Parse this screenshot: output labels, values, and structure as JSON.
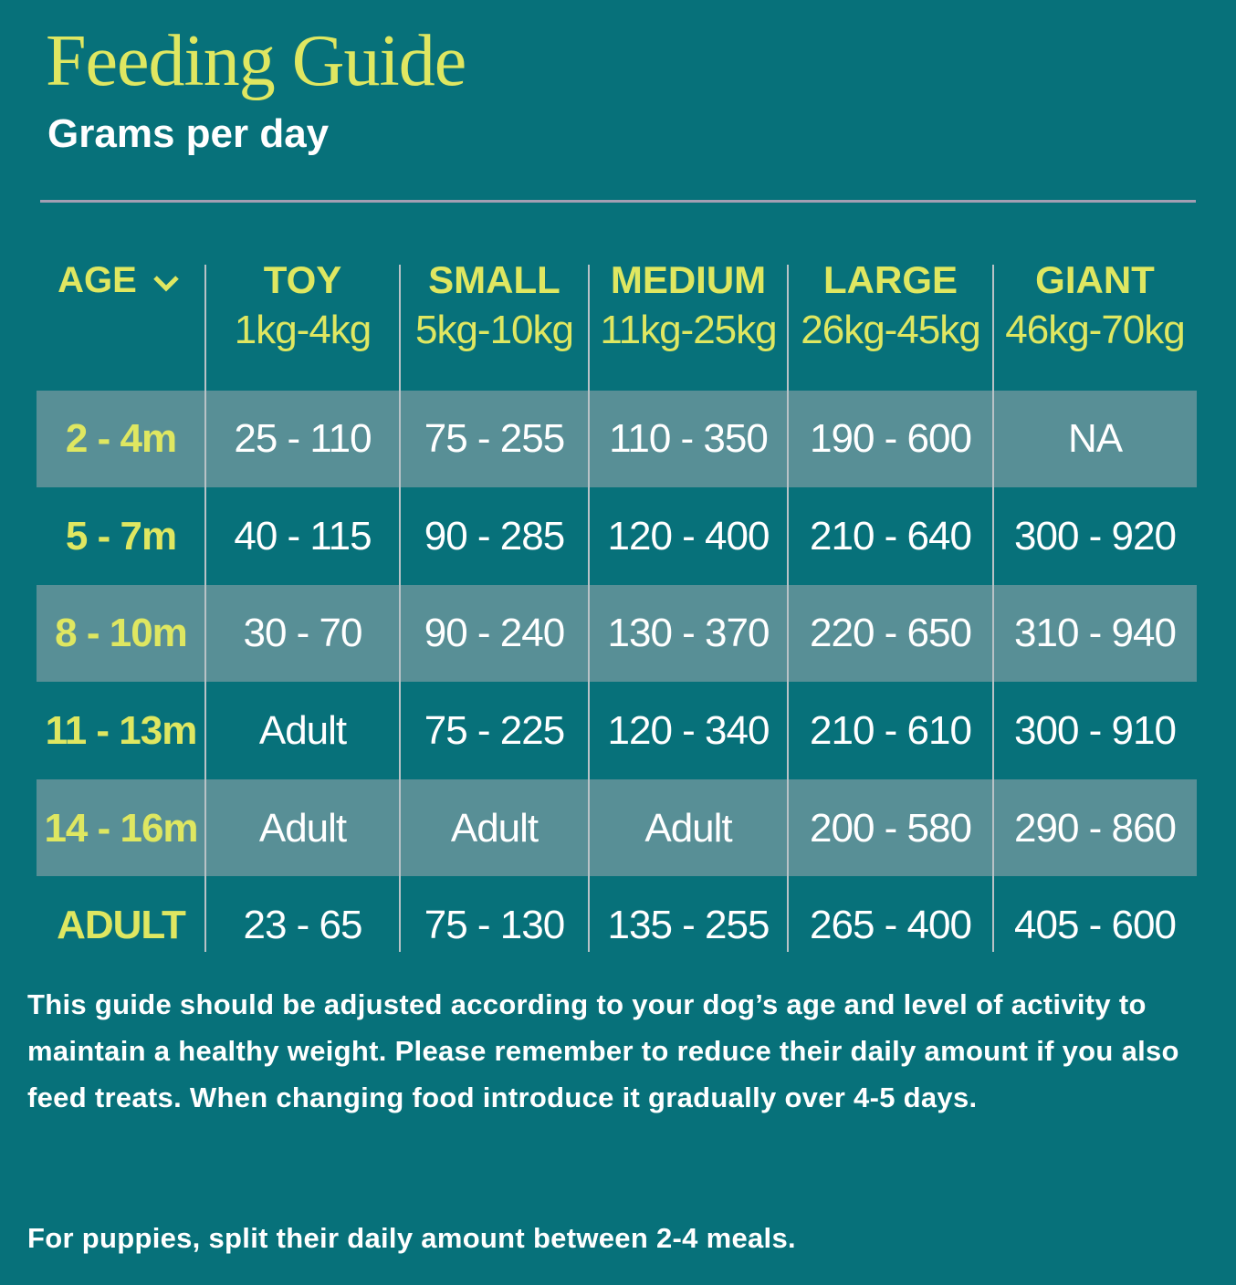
{
  "header": {
    "title": "Feeding Guide",
    "subtitle": "Grams per day"
  },
  "table": {
    "age_header": "AGE",
    "columns": [
      {
        "label": "TOY",
        "weight": "1kg-4kg"
      },
      {
        "label": "SMALL",
        "weight": "5kg-10kg"
      },
      {
        "label": "MEDIUM",
        "weight": "11kg-25kg"
      },
      {
        "label": "LARGE",
        "weight": "26kg-45kg"
      },
      {
        "label": "GIANT",
        "weight": "46kg-70kg"
      }
    ],
    "rows": [
      {
        "age": "2 - 4m",
        "cells": [
          "25 - 110",
          "75 - 255",
          "110 - 350",
          "190 - 600",
          "NA"
        ]
      },
      {
        "age": "5 - 7m",
        "cells": [
          "40 - 115",
          "90 - 285",
          "120 - 400",
          "210 - 640",
          "300 - 920"
        ]
      },
      {
        "age": "8 - 10m",
        "cells": [
          "30 - 70",
          "90 - 240",
          "130 - 370",
          "220 - 650",
          "310 - 940"
        ]
      },
      {
        "age": "11 - 13m",
        "cells": [
          "Adult",
          "75 - 225",
          "120 - 340",
          "210 - 610",
          "300 - 910"
        ]
      },
      {
        "age": "14 - 16m",
        "cells": [
          "Adult",
          "Adult",
          "Adult",
          "200 - 580",
          "290 - 860"
        ]
      },
      {
        "age": "ADULT",
        "cells": [
          "23 - 65",
          "75 - 130",
          "135 - 255",
          "265 - 400",
          "405 - 600"
        ]
      }
    ]
  },
  "notes": [
    "This guide should be adjusted according to your dog’s age and level of activity to maintain a healthy weight. Please remember to reduce their daily amount if you also feed treats. When changing food introduce it gradually over 4-5 days.",
    "For puppies, split their daily amount between 2-4 meals."
  ]
}
